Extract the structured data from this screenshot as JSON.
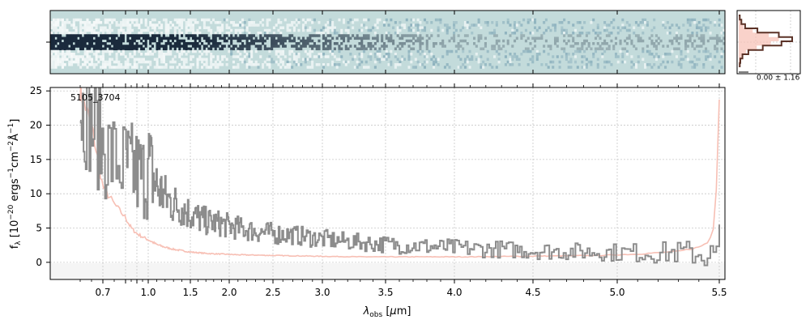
{
  "chart_data": [
    {
      "panel": "2d-spectrum",
      "type": "heatmap",
      "colors": {
        "background": "#c3dbdb",
        "trace_dark": "#1a2a3c",
        "trace_light": "#ffffff",
        "noise": "#8fb3bf"
      }
    },
    {
      "panel": "spatial-profile",
      "type": "line",
      "annotation": "0.00 ± 1.16",
      "profile": [
        0.02,
        0.05,
        0.12,
        0.35,
        0.75,
        1.0,
        0.8,
        0.45,
        0.18,
        0.07,
        0.03,
        0.02
      ],
      "colors": {
        "profile": "#5b3227",
        "model": "#f7bfb4"
      }
    },
    {
      "panel": "1d-spectrum",
      "type": "line",
      "annotation": "5105_3704",
      "xlabel": "λ_obs [μm]",
      "ylabel": "f_λ [10^-20 ergs^-1 cm^-2 Å^-1]",
      "ylim": [
        -2.5,
        25.5
      ],
      "xticks": [
        0.7,
        0.8,
        0.9,
        1.0,
        1.5,
        2.0,
        2.5,
        3.0,
        3.5,
        4.0,
        4.5,
        5.0,
        5.5
      ],
      "xticklabels": [
        "0.7",
        "",
        "",
        "1.0",
        "1.5",
        "2.0",
        "2.5",
        "3.0",
        "3.5",
        "4.0",
        "4.5",
        "5.0",
        "5.5"
      ],
      "yticks": [
        0,
        5,
        10,
        15,
        20,
        25
      ],
      "yticklabels": [
        "0",
        "5",
        "10",
        "15",
        "20",
        "25"
      ],
      "grid": true,
      "series": [
        {
          "role": "flux",
          "color": "#8c8c8c",
          "x": [
            0.6,
            0.65,
            0.7,
            0.75,
            0.8,
            0.85,
            0.9,
            0.95,
            1.0,
            1.1,
            1.2,
            1.3,
            1.4,
            1.5,
            1.7,
            1.9,
            2.1,
            2.3,
            2.5,
            2.7,
            2.9,
            3.1,
            3.3,
            3.5,
            3.7,
            3.9,
            4.1,
            4.3,
            4.5,
            4.7,
            4.9,
            5.1,
            5.3,
            5.4,
            5.45,
            5.48,
            5.5
          ],
          "y": [
            23,
            20,
            17,
            15,
            14,
            13.5,
            13,
            12.5,
            14,
            11,
            9.5,
            8.5,
            8,
            7,
            6,
            5.6,
            5,
            4.5,
            4.2,
            4,
            3.6,
            3.2,
            2.9,
            2.6,
            2.4,
            2.2,
            2,
            1.9,
            1.7,
            1.6,
            1.5,
            1.4,
            1.4,
            1.3,
            1.0,
            0.5,
            2.5
          ],
          "noise": [
            5,
            5,
            5,
            4.5,
            4.5,
            4.5,
            4.5,
            4.2,
            5,
            3,
            2.2,
            2,
            1.8,
            1.6,
            1.3,
            1.2,
            1.1,
            1,
            1,
            0.9,
            0.9,
            0.85,
            0.8,
            0.8,
            0.8,
            0.8,
            0.8,
            0.8,
            0.8,
            0.8,
            0.8,
            0.9,
            1.1,
            1.3,
            1.5,
            2,
            3
          ]
        },
        {
          "role": "error",
          "color": "#f7bfb4",
          "x": [
            0.6,
            0.65,
            0.7,
            0.75,
            0.8,
            0.85,
            0.9,
            0.95,
            1.0,
            1.1,
            1.2,
            1.3,
            1.4,
            1.5,
            1.7,
            1.9,
            2.1,
            2.3,
            2.5,
            2.7,
            2.9,
            3.1,
            3.3,
            3.5,
            3.7,
            3.9,
            4.1,
            4.3,
            4.5,
            4.7,
            4.9,
            5.1,
            5.3,
            5.4,
            5.45,
            5.48,
            5.5
          ],
          "y": [
            25,
            20,
            11,
            8.5,
            6.5,
            5,
            4.2,
            3.7,
            3.3,
            2.6,
            2.2,
            1.9,
            1.7,
            1.5,
            1.3,
            1.2,
            1.1,
            1.05,
            1.0,
            0.95,
            0.9,
            0.85,
            0.8,
            0.8,
            0.8,
            0.8,
            0.8,
            0.85,
            0.9,
            0.95,
            1.0,
            1.2,
            1.6,
            2.2,
            3,
            6,
            25
          ]
        }
      ]
    }
  ]
}
